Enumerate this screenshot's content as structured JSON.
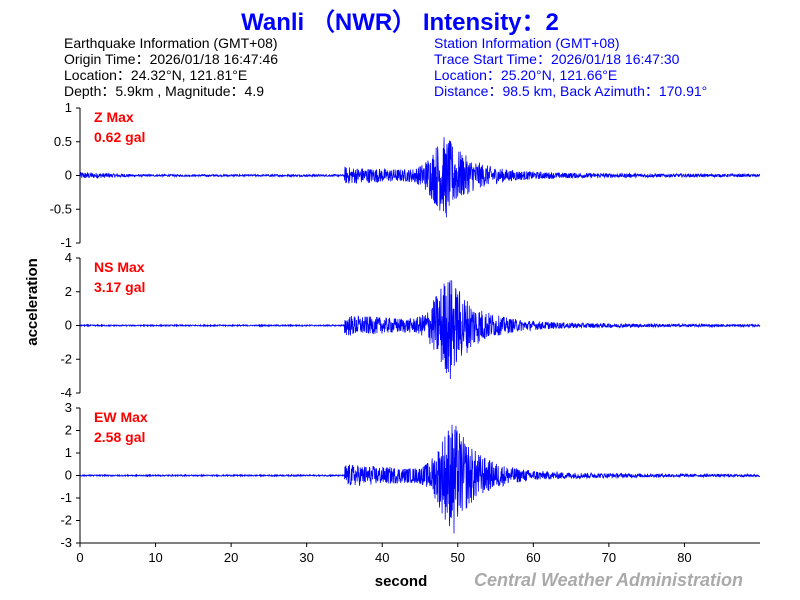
{
  "title": "Wanli （NWR） Intensity：2",
  "earthquake": {
    "heading": "Earthquake Information (GMT+08)",
    "origin_time": "Origin Time：2026/01/18 16:47:46",
    "location": "Location：24.32°N, 121.81°E",
    "depth_mag": "Depth：5.9km , Magnitude：4.9"
  },
  "station": {
    "heading": "Station Information (GMT+08)",
    "trace_start": "Trace Start Time：2026/01/18 16:47:30",
    "location": "Location：25.20°N, 121.66°E",
    "distance": "Distance：98.5 km, Back Azimuth：170.91°"
  },
  "watermark": "Central Weather Administration",
  "colors": {
    "title": "#0000ff",
    "trace": "#0000ff",
    "max_label": "#ff0000",
    "axis": "#000000"
  },
  "chart_data": {
    "type": "line",
    "xlabel": "second",
    "ylabel": "acceleration",
    "xlim": [
      0,
      90
    ],
    "xticks": [
      0,
      10,
      20,
      30,
      40,
      50,
      60,
      70,
      80
    ],
    "grid": false,
    "panels": [
      {
        "name": "Z",
        "max_title": "Z Max",
        "max_value": "0.62 gal",
        "peak": 0.62,
        "ylim": [
          -1,
          1
        ],
        "yticks": [
          -1,
          -0.5,
          0,
          0.5,
          1
        ],
        "yticklabels": [
          "-1",
          "-0.5",
          "0",
          "0.5",
          "1"
        ],
        "noise": 0.035,
        "p_arrival": 35,
        "s_peak": 48.5
      },
      {
        "name": "NS",
        "max_title": "NS Max",
        "max_value": "3.17 gal",
        "peak": 3.17,
        "ylim": [
          -4,
          4
        ],
        "yticks": [
          -4,
          -2,
          0,
          2,
          4
        ],
        "yticklabels": [
          "-4",
          "-2",
          "0",
          "2",
          "4"
        ],
        "noise": 0.09,
        "p_arrival": 35,
        "s_peak": 49
      },
      {
        "name": "EW",
        "max_title": "EW Max",
        "max_value": "2.58 gal",
        "peak": 2.58,
        "ylim": [
          -3,
          3
        ],
        "yticks": [
          -3,
          -2,
          -1,
          0,
          1,
          2,
          3
        ],
        "yticklabels": [
          "-3",
          "-2",
          "-1",
          "0",
          "1",
          "2",
          "3"
        ],
        "noise": 0.07,
        "p_arrival": 35,
        "s_peak": 49.5
      }
    ]
  }
}
